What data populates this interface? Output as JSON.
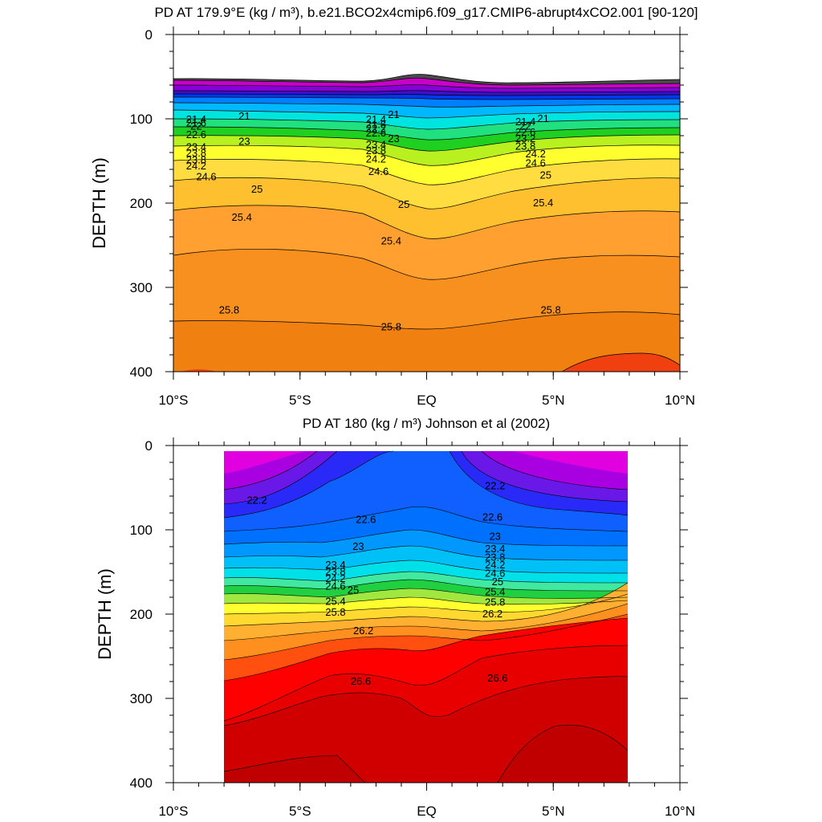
{
  "chart_data": [
    {
      "type": "contour",
      "title": "PD AT 179.9°E (kg / m³), b.e21.BCO2x4cmip6.f09_g17.CMIP6-abrupt4xCO2.001 [90-120]",
      "xlabel": "",
      "ylabel": "DEPTH (m)",
      "xlim": [
        -10,
        10
      ],
      "ylim": [
        0,
        400
      ],
      "y_inverted": true,
      "x_ticks": [
        -10,
        -5,
        0,
        5,
        10
      ],
      "x_tick_labels": [
        "10°S",
        "5°S",
        "EQ",
        "5°N",
        "10°N"
      ],
      "y_ticks": [
        0,
        100,
        200,
        300,
        400
      ],
      "y_tick_labels": [
        "0",
        "100",
        "200",
        "300",
        "400"
      ],
      "contour_levels": [
        21,
        21.2,
        21.4,
        21.6,
        21.8,
        22,
        22.2,
        22.4,
        22.6,
        22.8,
        23,
        23.2,
        23.4,
        23.6,
        23.8,
        24,
        24.2,
        24.4,
        24.6,
        24.8,
        25,
        25.2,
        25.4,
        25.6,
        25.8,
        26,
        26.2,
        26.4,
        26.6,
        26.8
      ],
      "data_extent_x": [
        -10,
        10
      ],
      "contour_labels": [
        {
          "text": "21",
          "x": -7.2,
          "y": 97
        },
        {
          "text": "21.4",
          "x": -9.1,
          "y": 101
        },
        {
          "text": "21.6",
          "x": -9.1,
          "y": 105
        },
        {
          "text": "22",
          "x": -9.1,
          "y": 109
        },
        {
          "text": "22.6",
          "x": -9.1,
          "y": 119
        },
        {
          "text": "23",
          "x": -7.2,
          "y": 127
        },
        {
          "text": "23.4",
          "x": -9.1,
          "y": 134
        },
        {
          "text": "23.8",
          "x": -9.1,
          "y": 141
        },
        {
          "text": "23.8",
          "x": -9.1,
          "y": 149
        },
        {
          "text": "24.2",
          "x": -9.1,
          "y": 156
        },
        {
          "text": "24.6",
          "x": -8.7,
          "y": 169
        },
        {
          "text": "25",
          "x": -6.7,
          "y": 184
        },
        {
          "text": "25.4",
          "x": -7.3,
          "y": 217
        },
        {
          "text": "25.8",
          "x": -7.8,
          "y": 327
        },
        {
          "text": "21",
          "x": -1.3,
          "y": 95
        },
        {
          "text": "21.4",
          "x": -2.0,
          "y": 101
        },
        {
          "text": "21.8",
          "x": -2.0,
          "y": 107
        },
        {
          "text": "22.2",
          "x": -2.0,
          "y": 112
        },
        {
          "text": "22.6",
          "x": -2.0,
          "y": 117
        },
        {
          "text": "23",
          "x": -1.3,
          "y": 124
        },
        {
          "text": "23.4",
          "x": -2.0,
          "y": 131
        },
        {
          "text": "23.8",
          "x": -2.0,
          "y": 138
        },
        {
          "text": "24.2",
          "x": -2.0,
          "y": 148
        },
        {
          "text": "24.6",
          "x": -1.9,
          "y": 163
        },
        {
          "text": "25",
          "x": -0.9,
          "y": 202
        },
        {
          "text": "25.4",
          "x": -1.4,
          "y": 245
        },
        {
          "text": "25.8",
          "x": -1.4,
          "y": 347
        },
        {
          "text": "21",
          "x": 4.6,
          "y": 100
        },
        {
          "text": "21.4",
          "x": 3.9,
          "y": 104
        },
        {
          "text": "22",
          "x": 3.9,
          "y": 109
        },
        {
          "text": "22.6",
          "x": 3.9,
          "y": 116
        },
        {
          "text": "23.2",
          "x": 3.9,
          "y": 124
        },
        {
          "text": "23.8",
          "x": 3.9,
          "y": 133
        },
        {
          "text": "24.2",
          "x": 4.3,
          "y": 142
        },
        {
          "text": "24.6",
          "x": 4.3,
          "y": 153
        },
        {
          "text": "25",
          "x": 4.7,
          "y": 167
        },
        {
          "text": "25.4",
          "x": 4.6,
          "y": 200
        },
        {
          "text": "25.8",
          "x": 4.9,
          "y": 327
        }
      ]
    },
    {
      "type": "contour",
      "title": "PD AT 180 (kg / m³) Johnson et al (2002)",
      "xlabel": "",
      "ylabel": "DEPTH (m)",
      "xlim": [
        -10,
        10
      ],
      "ylim": [
        0,
        400
      ],
      "y_inverted": true,
      "x_ticks": [
        -10,
        -5,
        0,
        5,
        10
      ],
      "x_tick_labels": [
        "10°S",
        "5°S",
        "EQ",
        "5°N",
        "10°N"
      ],
      "y_ticks": [
        0,
        100,
        200,
        300,
        400
      ],
      "y_tick_labels": [
        "0",
        "100",
        "200",
        "300",
        "400"
      ],
      "contour_levels": [
        21.6,
        21.8,
        22,
        22.2,
        22.4,
        22.6,
        22.8,
        23,
        23.2,
        23.4,
        23.6,
        23.8,
        24,
        24.2,
        24.4,
        24.6,
        24.8,
        25,
        25.2,
        25.4,
        25.6,
        25.8,
        26,
        26.2,
        26.4,
        26.6,
        26.8,
        27
      ],
      "data_extent_x": [
        -8,
        8
      ],
      "data_extent_y": [
        8,
        400
      ],
      "contour_labels": [
        {
          "text": "22.2",
          "x": -6.7,
          "y": 65
        },
        {
          "text": "22.6",
          "x": -2.4,
          "y": 88
        },
        {
          "text": "23",
          "x": -2.7,
          "y": 120
        },
        {
          "text": "23.4",
          "x": -3.6,
          "y": 142
        },
        {
          "text": "23.8",
          "x": -3.6,
          "y": 150
        },
        {
          "text": "24.2",
          "x": -3.6,
          "y": 158
        },
        {
          "text": "24.6",
          "x": -3.6,
          "y": 167
        },
        {
          "text": "25",
          "x": -2.9,
          "y": 172
        },
        {
          "text": "25.4",
          "x": -3.6,
          "y": 185
        },
        {
          "text": "25.8",
          "x": -3.6,
          "y": 198
        },
        {
          "text": "26.2",
          "x": -2.5,
          "y": 220
        },
        {
          "text": "26.6",
          "x": -2.6,
          "y": 280
        },
        {
          "text": "22.2",
          "x": 2.7,
          "y": 48
        },
        {
          "text": "22.6",
          "x": 2.6,
          "y": 85
        },
        {
          "text": "23",
          "x": 2.7,
          "y": 108
        },
        {
          "text": "23.4",
          "x": 2.7,
          "y": 123
        },
        {
          "text": "23.8",
          "x": 2.7,
          "y": 133
        },
        {
          "text": "24.2",
          "x": 2.7,
          "y": 142
        },
        {
          "text": "24.6",
          "x": 2.7,
          "y": 152
        },
        {
          "text": "25",
          "x": 2.8,
          "y": 162
        },
        {
          "text": "25.4",
          "x": 2.7,
          "y": 174
        },
        {
          "text": "25.8",
          "x": 2.7,
          "y": 186
        },
        {
          "text": "26.2",
          "x": 2.6,
          "y": 200
        },
        {
          "text": "26.6",
          "x": 2.8,
          "y": 276
        }
      ]
    }
  ]
}
